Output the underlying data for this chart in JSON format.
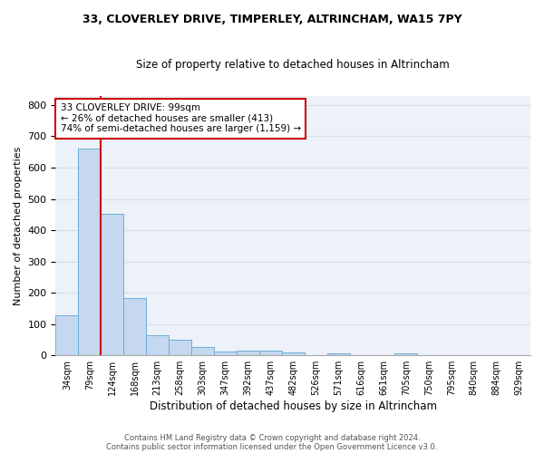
{
  "title_line1": "33, CLOVERLEY DRIVE, TIMPERLEY, ALTRINCHAM, WA15 7PY",
  "title_line2": "Size of property relative to detached houses in Altrincham",
  "xlabel": "Distribution of detached houses by size in Altrincham",
  "ylabel": "Number of detached properties",
  "categories": [
    "34sqm",
    "79sqm",
    "124sqm",
    "168sqm",
    "213sqm",
    "258sqm",
    "303sqm",
    "347sqm",
    "392sqm",
    "437sqm",
    "482sqm",
    "526sqm",
    "571sqm",
    "616sqm",
    "661sqm",
    "705sqm",
    "750sqm",
    "795sqm",
    "840sqm",
    "884sqm",
    "929sqm"
  ],
  "values": [
    128,
    660,
    453,
    183,
    65,
    49,
    28,
    12,
    14,
    14,
    8,
    0,
    7,
    0,
    0,
    7,
    0,
    0,
    0,
    0,
    0
  ],
  "bar_color": "#c5d8f0",
  "bar_edge_color": "#6baed6",
  "vline_color": "#cc0000",
  "annotation_text": "33 CLOVERLEY DRIVE: 99sqm\n← 26% of detached houses are smaller (413)\n74% of semi-detached houses are larger (1,159) →",
  "annotation_box_color": "white",
  "annotation_box_edge_color": "#cc0000",
  "grid_color": "#d8dde8",
  "background_color": "#edf1f9",
  "ylim": [
    0,
    830
  ],
  "yticks": [
    0,
    100,
    200,
    300,
    400,
    500,
    600,
    700,
    800
  ],
  "footer_line1": "Contains HM Land Registry data © Crown copyright and database right 2024.",
  "footer_line2": "Contains public sector information licensed under the Open Government Licence v3.0."
}
